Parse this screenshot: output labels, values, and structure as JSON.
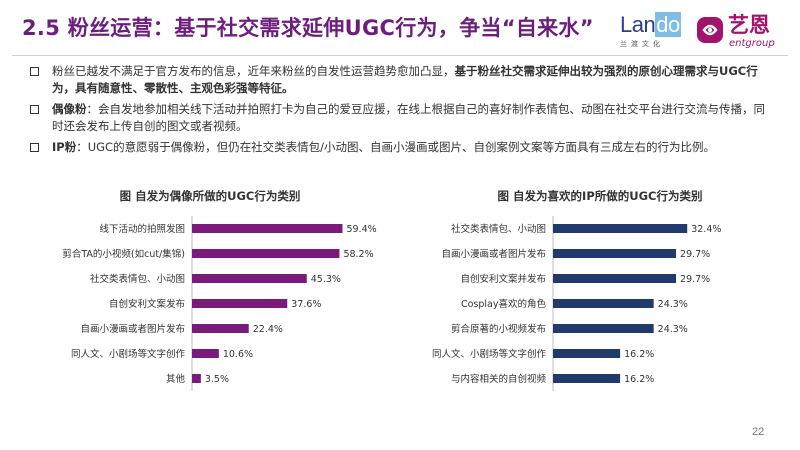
{
  "header": {
    "title": "2.5 粉丝运营：基于社交需求延伸UGC行为，争当“自来水”",
    "logo_lando_prefix": "Lan",
    "logo_lando_suffix": "do",
    "logo_lando_sub": "兰渡文化",
    "logo_yien_cn": "艺恩",
    "logo_yien_en": "entgroup"
  },
  "bullets": [
    {
      "lead": "粉丝已越发不满足于官方发布的信息，近年来粉丝的自发性运营趋势愈加凸显，",
      "bold": "基于粉丝社交需求延伸出较为强烈的原创心理需求与UGC行为，具有随意性、零散性、主观色彩强等特征。",
      "tail": ""
    },
    {
      "lead": "",
      "bold": "偶像粉",
      "tail": "：会自发地参加相关线下活动并拍照打卡为自己的爱豆应援，在线上根据自己的喜好制作表情包、动图在社交平台进行交流与传播，同时还会发布上传自创的图文或者视频。"
    },
    {
      "lead": "",
      "bold": "IP粉",
      "tail": "：UGC的意愿弱于偶像粉，但仍在社交类表情包/小动图、自画小漫画或图片、自创案例文案等方面具有三成左右的行为比例。"
    }
  ],
  "chart_data": [
    {
      "type": "bar",
      "orientation": "horizontal",
      "title": "图  自发为偶像所做的UGC行为类别",
      "categories": [
        "线下活动的拍照发图",
        "剪合TA的小视频(如cut/集锦)",
        "社交类表情包、小动图",
        "自创安利文案发布",
        "自画小漫画或者图片发布",
        "同人文、小剧场等文字创作",
        "其他"
      ],
      "values": [
        59.4,
        58.2,
        45.3,
        37.6,
        22.4,
        10.6,
        3.5
      ],
      "value_labels": [
        "59.4%",
        "58.2%",
        "45.3%",
        "37.6%",
        "22.4%",
        "10.6%",
        "3.5%"
      ],
      "unit": "%",
      "xlim": [
        0,
        60
      ],
      "color": "#7a1a7a",
      "grid": false,
      "legend": "none"
    },
    {
      "type": "bar",
      "orientation": "horizontal",
      "title": "图  自发为喜欢的IP所做的UGC行为类别",
      "categories": [
        "社交类表情包、小动图",
        "自画小漫画或者图片发布",
        "自创安利文案并发布",
        "Cosplay喜欢的角色",
        "剪合原著的小视频发布",
        "同人文、小剧场等文字创作",
        "与内容相关的自创视频"
      ],
      "values": [
        32.4,
        29.7,
        29.7,
        24.3,
        24.3,
        16.2,
        16.2
      ],
      "value_labels": [
        "32.4%",
        "29.7%",
        "29.7%",
        "24.3%",
        "24.3%",
        "16.2%",
        "16.2%"
      ],
      "unit": "%",
      "xlim": [
        0,
        35
      ],
      "color": "#1f3a6b",
      "grid": false,
      "legend": "none"
    }
  ],
  "footer": {
    "page_number": "22"
  },
  "colors": {
    "title": "#6d1e7c",
    "left_bars": "#7a1a7a",
    "right_bars": "#1f3a6b"
  }
}
